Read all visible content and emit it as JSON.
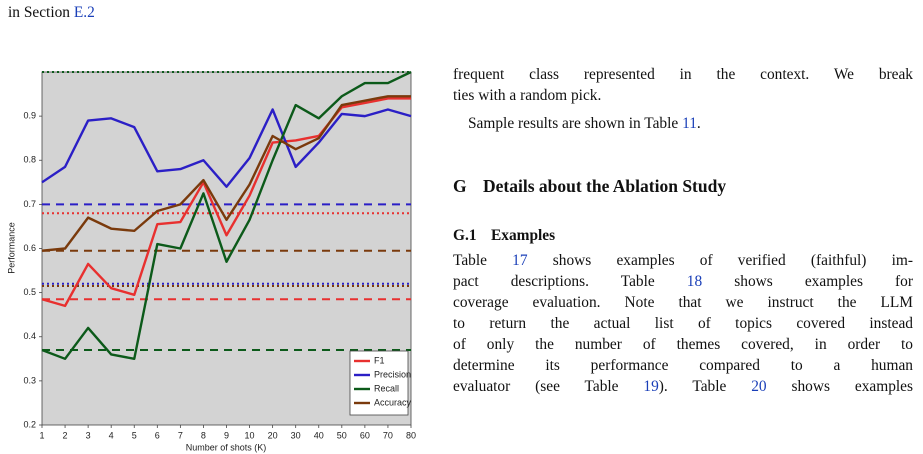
{
  "caption": [
    {
      "text": "in Section "
    },
    {
      "text": "E.2",
      "link": true
    }
  ],
  "chart_data": {
    "type": "line",
    "x_label": "Number of shots (K)",
    "y_label": "Performance",
    "categories": [
      "1",
      "2",
      "3",
      "4",
      "5",
      "6",
      "7",
      "8",
      "9",
      "10",
      "20",
      "30",
      "40",
      "50",
      "60",
      "70",
      "80"
    ],
    "ylim": [
      0.2,
      1.0
    ],
    "yticks": [
      0.2,
      0.3,
      0.4,
      0.5,
      0.6,
      0.7,
      0.8,
      0.9
    ],
    "legend": "lower right",
    "background": "#d3d3d3",
    "series": [
      {
        "name": "F1",
        "color": "#e8302f",
        "values": [
          0.485,
          0.47,
          0.565,
          0.51,
          0.495,
          0.655,
          0.66,
          0.75,
          0.63,
          0.72,
          0.84,
          0.845,
          0.855,
          0.92,
          0.93,
          0.94,
          0.94
        ]
      },
      {
        "name": "Precision",
        "color": "#2b1fc6",
        "values": [
          0.75,
          0.785,
          0.89,
          0.895,
          0.875,
          0.775,
          0.78,
          0.8,
          0.74,
          0.805,
          0.915,
          0.785,
          0.84,
          0.905,
          0.9,
          0.915,
          0.9
        ]
      },
      {
        "name": "Recall",
        "color": "#0c5a1a",
        "values": [
          0.37,
          0.35,
          0.42,
          0.36,
          0.35,
          0.61,
          0.6,
          0.725,
          0.57,
          0.665,
          0.8,
          0.925,
          0.895,
          0.945,
          0.975,
          0.975,
          1.0
        ]
      },
      {
        "name": "Accuracy",
        "color": "#7a3a0c",
        "values": [
          0.595,
          0.6,
          0.67,
          0.645,
          0.64,
          0.685,
          0.7,
          0.755,
          0.665,
          0.745,
          0.855,
          0.825,
          0.85,
          0.925,
          0.935,
          0.945,
          0.945
        ]
      }
    ],
    "baselines": [
      {
        "color": "#2b1fc6",
        "value": 0.7,
        "dash": "dashed"
      },
      {
        "color": "#e8302f",
        "value": 0.68,
        "dash": "dotted"
      },
      {
        "color": "#7a3a0c",
        "value": 0.595,
        "dash": "dashed"
      },
      {
        "color": "#2b1fc6",
        "value": 0.52,
        "dash": "dotted"
      },
      {
        "color": "#7a3a0c",
        "value": 0.515,
        "dash": "dotted"
      },
      {
        "color": "#e8302f",
        "value": 0.485,
        "dash": "dashed"
      },
      {
        "color": "#0c5a1a",
        "value": 0.37,
        "dash": "dashed"
      },
      {
        "color": "#0c5a1a",
        "value": 1.0,
        "dash": "dotted"
      }
    ]
  },
  "body": {
    "p1": [
      [
        "frequent class represented in the context. We break"
      ],
      [
        "ties with a random pick."
      ]
    ],
    "p2": [
      [
        "Sample results are shown in Table ",
        {
          "text": "11",
          "link": true
        },
        "."
      ]
    ],
    "section": {
      "number": "G",
      "title": "Details about the Ablation Study"
    },
    "subsection": {
      "number": "G.1",
      "title": "Examples"
    },
    "p3": [
      [
        "Table ",
        {
          "text": "17",
          "link": true
        },
        " shows examples of verified (faithful) im-"
      ],
      [
        "pact descriptions. Table ",
        {
          "text": "18",
          "link": true
        },
        " shows examples for"
      ],
      [
        "coverage evaluation. Note that we instruct the LLM"
      ],
      [
        "to return the actual list of topics covered instead"
      ],
      [
        "of only the number of themes covered, in order to"
      ],
      [
        "determine its performance compared to a human"
      ],
      [
        "evaluator (see Table ",
        {
          "text": "19",
          "link": true
        },
        "). Table ",
        {
          "text": "20",
          "link": true
        },
        " shows examples"
      ]
    ]
  }
}
